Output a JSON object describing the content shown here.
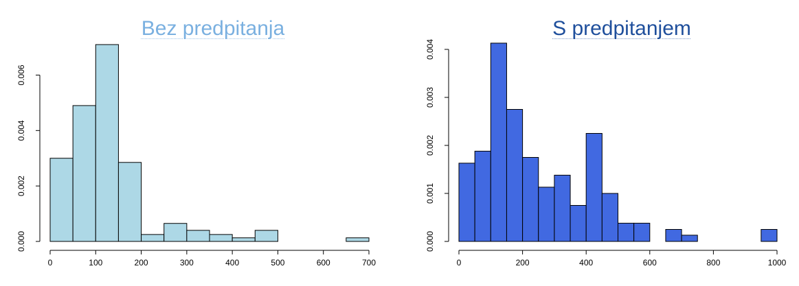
{
  "chart_data": [
    {
      "type": "bar",
      "title": "Bez predpitanja",
      "xlabel": "",
      "ylabel": "",
      "bin_width": 50,
      "bins_start": [
        0,
        50,
        100,
        150,
        200,
        250,
        300,
        350,
        400,
        450,
        500,
        550,
        600,
        650
      ],
      "values": [
        0.003,
        0.0049,
        0.0071,
        0.00285,
        0.00025,
        0.00065,
        0.0004,
        0.00025,
        0.00013,
        0.0004,
        0,
        0,
        0,
        0.00013
      ],
      "xlim": [
        0,
        700
      ],
      "ylim": [
        0,
        0.0071
      ],
      "xticks": [
        "0",
        "100",
        "200",
        "300",
        "400",
        "500",
        "600",
        "700"
      ],
      "yticks": [
        "0.000",
        "0.002",
        "0.004",
        "0.006"
      ],
      "bar_color": "#add8e6",
      "title_color": "#7ab0e0"
    },
    {
      "type": "bar",
      "title": "S predpitanjem",
      "xlabel": "",
      "ylabel": "",
      "bin_width": 50,
      "bins_start": [
        0,
        50,
        100,
        150,
        200,
        250,
        300,
        350,
        400,
        450,
        500,
        550,
        600,
        650,
        700,
        750,
        800,
        850,
        900,
        950
      ],
      "values": [
        0.00163,
        0.00188,
        0.00413,
        0.00275,
        0.00175,
        0.00113,
        0.00138,
        0.00075,
        0.00225,
        0.001,
        0.00038,
        0.00038,
        0,
        0.00025,
        0.00013,
        0,
        0,
        0,
        0,
        0.00025
      ],
      "xlim": [
        0,
        1000
      ],
      "ylim": [
        0,
        0.0041
      ],
      "xticks": [
        "0",
        "200",
        "400",
        "600",
        "800",
        "1000"
      ],
      "yticks": [
        "0.000",
        "0.001",
        "0.002",
        "0.003",
        "0.004"
      ],
      "bar_color": "#4169e1",
      "title_color": "#1f4f9c"
    }
  ]
}
